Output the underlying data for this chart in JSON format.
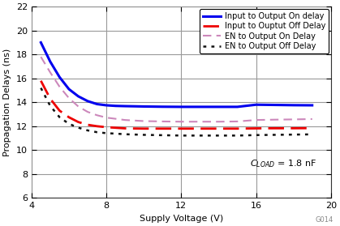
{
  "title": "",
  "xlabel": "Supply Voltage (V)",
  "ylabel": "Propagation Delays (ns)",
  "xlim": [
    4,
    20
  ],
  "ylim": [
    6,
    22
  ],
  "xticks": [
    4,
    8,
    12,
    16,
    20
  ],
  "yticks": [
    6,
    8,
    10,
    12,
    14,
    16,
    18,
    20,
    22
  ],
  "annotation": "C$_{LOAD}$ = 1.8 nF",
  "grid_color": "#999999",
  "background_color": "#ffffff",
  "watermark": "G014",
  "legend_entries": [
    "Input to Output On delay",
    "Input to Ouptut Off Delay",
    "EN to Output On Delay",
    "EN to Output Off Delay"
  ],
  "curves": {
    "blue_solid": {
      "color": "#0000ee",
      "linewidth": 2.2,
      "x": [
        4.5,
        5.0,
        5.5,
        6.0,
        6.5,
        7.0,
        7.5,
        8.0,
        8.5,
        9.0,
        10.0,
        11.0,
        12.0,
        13.0,
        14.0,
        15.0,
        16.0,
        17.0,
        18.0,
        19.0
      ],
      "y": [
        19.0,
        17.4,
        16.1,
        15.1,
        14.5,
        14.1,
        13.85,
        13.75,
        13.7,
        13.68,
        13.65,
        13.63,
        13.62,
        13.62,
        13.62,
        13.62,
        13.8,
        13.78,
        13.76,
        13.75
      ]
    },
    "red_dashed": {
      "color": "#ee0000",
      "linewidth": 2.0,
      "dashes": [
        7,
        3
      ],
      "x": [
        4.5,
        5.0,
        5.5,
        6.0,
        6.5,
        7.0,
        7.5,
        8.0,
        8.5,
        9.0,
        10.0,
        11.0,
        12.0,
        13.0,
        14.0,
        15.0,
        16.0,
        17.0,
        18.0,
        19.0
      ],
      "y": [
        15.8,
        14.3,
        13.3,
        12.75,
        12.35,
        12.12,
        12.0,
        11.92,
        11.87,
        11.82,
        11.8,
        11.8,
        11.8,
        11.8,
        11.8,
        11.8,
        11.82,
        11.83,
        11.83,
        11.84
      ]
    },
    "pink_dashed": {
      "color": "#cc88bb",
      "linewidth": 1.5,
      "dashes": [
        5,
        3
      ],
      "x": [
        4.5,
        5.0,
        5.5,
        6.0,
        6.5,
        7.0,
        7.5,
        8.0,
        8.5,
        9.0,
        10.0,
        11.0,
        12.0,
        13.0,
        14.0,
        15.0,
        16.0,
        17.0,
        18.0,
        19.0
      ],
      "y": [
        17.8,
        16.5,
        15.3,
        14.35,
        13.65,
        13.2,
        12.92,
        12.72,
        12.62,
        12.52,
        12.43,
        12.4,
        12.38,
        12.38,
        12.38,
        12.4,
        12.52,
        12.55,
        12.57,
        12.6
      ]
    },
    "black_dotted": {
      "color": "#111111",
      "linewidth": 1.8,
      "dashes": [
        1.5,
        2.5
      ],
      "x": [
        4.5,
        5.0,
        5.5,
        6.0,
        6.5,
        7.0,
        7.5,
        8.0,
        8.5,
        9.0,
        10.0,
        11.0,
        12.0,
        13.0,
        14.0,
        15.0,
        16.0,
        17.0,
        18.0,
        19.0
      ],
      "y": [
        15.2,
        13.7,
        12.75,
        12.2,
        11.88,
        11.65,
        11.5,
        11.42,
        11.38,
        11.33,
        11.28,
        11.25,
        11.22,
        11.22,
        11.22,
        11.22,
        11.26,
        11.28,
        11.3,
        11.32
      ]
    }
  }
}
